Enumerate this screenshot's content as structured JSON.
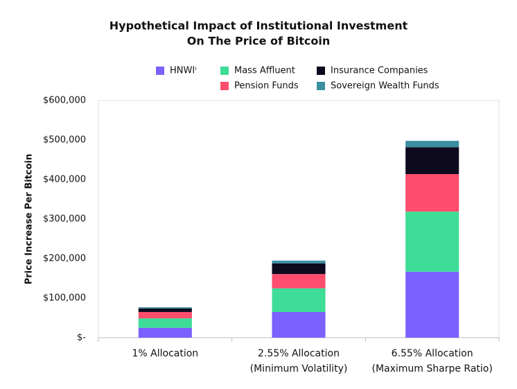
{
  "chart_data": {
    "type": "stacked_bar",
    "title": "Hypothetical Impact of Institutional Investment",
    "subtitle": "On The Price of Bitcoin",
    "y_label": "Price Increase Per Bitcoin",
    "categories": [
      "1% Allocation",
      "2.55% Allocation\n(Minimum Volatility)",
      "6.55% Allocation\n(Maximum Sharpe Ratio)"
    ],
    "series": [
      {
        "name": "HNWIⁱ",
        "color": "#7b61ff",
        "values": [
          25000,
          65000,
          167000
        ]
      },
      {
        "name": "Mass Affluent",
        "color": "#3ddc97",
        "values": [
          24000,
          60000,
          152000
        ]
      },
      {
        "name": "Pension Funds",
        "color": "#ff4d6d",
        "values": [
          16000,
          36000,
          95000
        ]
      },
      {
        "name": "Insurance Companies",
        "color": "#0d0a1f",
        "values": [
          9000,
          27000,
          68000
        ]
      },
      {
        "name": "Sovereign Wealth Funds",
        "color": "#3a8fa0",
        "values": [
          3000,
          7000,
          16000
        ]
      }
    ],
    "ylim": [
      0,
      600000
    ],
    "yticks": [
      {
        "value": 0,
        "label": "$-"
      },
      {
        "value": 100000,
        "label": "$100,000"
      },
      {
        "value": 200000,
        "label": "$200,000"
      },
      {
        "value": 300000,
        "label": "$300,000"
      },
      {
        "value": 400000,
        "label": "$400,000"
      },
      {
        "value": 500000,
        "label": "$500,000"
      },
      {
        "value": 600000,
        "label": "$600,000"
      }
    ],
    "grid": false
  }
}
